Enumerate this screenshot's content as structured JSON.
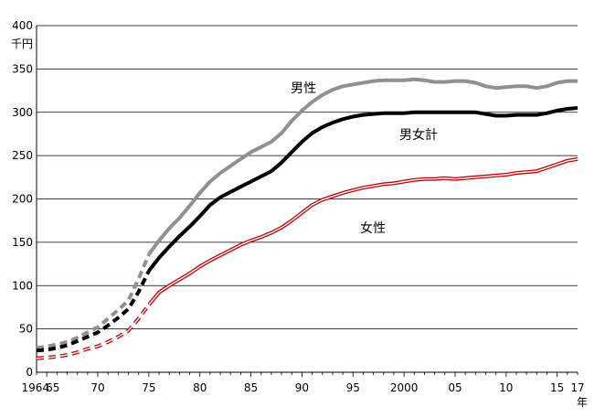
{
  "chart_data": {
    "type": "line",
    "ylabel": "千円",
    "xlabel": "年",
    "ylim": [
      0,
      400
    ],
    "yticks": [
      0,
      50,
      100,
      150,
      200,
      250,
      300,
      350,
      400
    ],
    "xlim": [
      1964,
      2017
    ],
    "xtick_labels": [
      {
        "x": 1964,
        "label": "1964"
      },
      {
        "x": 1965,
        "label": "65"
      },
      {
        "x": 1970,
        "label": "70"
      },
      {
        "x": 1975,
        "label": "75"
      },
      {
        "x": 1980,
        "label": "80"
      },
      {
        "x": 1985,
        "label": "85"
      },
      {
        "x": 1990,
        "label": "90"
      },
      {
        "x": 1995,
        "label": "95"
      },
      {
        "x": 2000,
        "label": "2000"
      },
      {
        "x": 2005,
        "label": "05"
      },
      {
        "x": 2010,
        "label": "10"
      },
      {
        "x": 2015,
        "label": "15"
      },
      {
        "x": 2017,
        "label": "17"
      }
    ],
    "grid": true,
    "dashed_until": 1975,
    "x": [
      1964,
      1965,
      1966,
      1967,
      1968,
      1969,
      1970,
      1971,
      1972,
      1973,
      1974,
      1975,
      1976,
      1977,
      1978,
      1979,
      1980,
      1981,
      1982,
      1983,
      1984,
      1985,
      1986,
      1987,
      1988,
      1989,
      1990,
      1991,
      1992,
      1993,
      1994,
      1995,
      1996,
      1997,
      1998,
      1999,
      2000,
      2001,
      2002,
      2003,
      2004,
      2005,
      2006,
      2007,
      2008,
      2009,
      2010,
      2011,
      2012,
      2013,
      2014,
      2015,
      2016,
      2017
    ],
    "series": [
      {
        "name": "男性",
        "color": "#909090",
        "style": "thick",
        "values": [
          28,
          30,
          32,
          35,
          40,
          46,
          52,
          62,
          72,
          83,
          108,
          136,
          152,
          166,
          178,
          192,
          207,
          220,
          230,
          238,
          246,
          254,
          260,
          266,
          276,
          290,
          302,
          312,
          320,
          326,
          330,
          332,
          334,
          336,
          337,
          337,
          337,
          338,
          337,
          335,
          335,
          336,
          336,
          334,
          330,
          328,
          329,
          330,
          330,
          328,
          330,
          334,
          336,
          336
        ]
      },
      {
        "name": "男女計",
        "color": "#000000",
        "style": "thick",
        "values": [
          25,
          26,
          28,
          31,
          36,
          41,
          46,
          54,
          63,
          73,
          93,
          117,
          132,
          145,
          157,
          168,
          180,
          193,
          202,
          208,
          214,
          220,
          226,
          232,
          242,
          254,
          266,
          276,
          283,
          288,
          292,
          295,
          297,
          298,
          299,
          299,
          299,
          300,
          300,
          300,
          300,
          300,
          300,
          300,
          298,
          296,
          296,
          297,
          297,
          297,
          299,
          302,
          304,
          305
        ]
      },
      {
        "name": "女性",
        "color": "#c00000",
        "style": "outline",
        "values": [
          16,
          17,
          18,
          20,
          23,
          27,
          30,
          35,
          41,
          48,
          62,
          78,
          92,
          100,
          107,
          114,
          122,
          129,
          135,
          141,
          147,
          152,
          156,
          161,
          167,
          175,
          184,
          193,
          199,
          203,
          207,
          210,
          213,
          215,
          217,
          218,
          220,
          222,
          223,
          223,
          224,
          223,
          224,
          225,
          226,
          227,
          228,
          230,
          231,
          232,
          236,
          240,
          244,
          246
        ]
      }
    ],
    "annotations": [
      {
        "text": "男性",
        "series": 0
      },
      {
        "text": "男女計",
        "series": 1
      },
      {
        "text": "女性",
        "series": 2
      }
    ]
  }
}
